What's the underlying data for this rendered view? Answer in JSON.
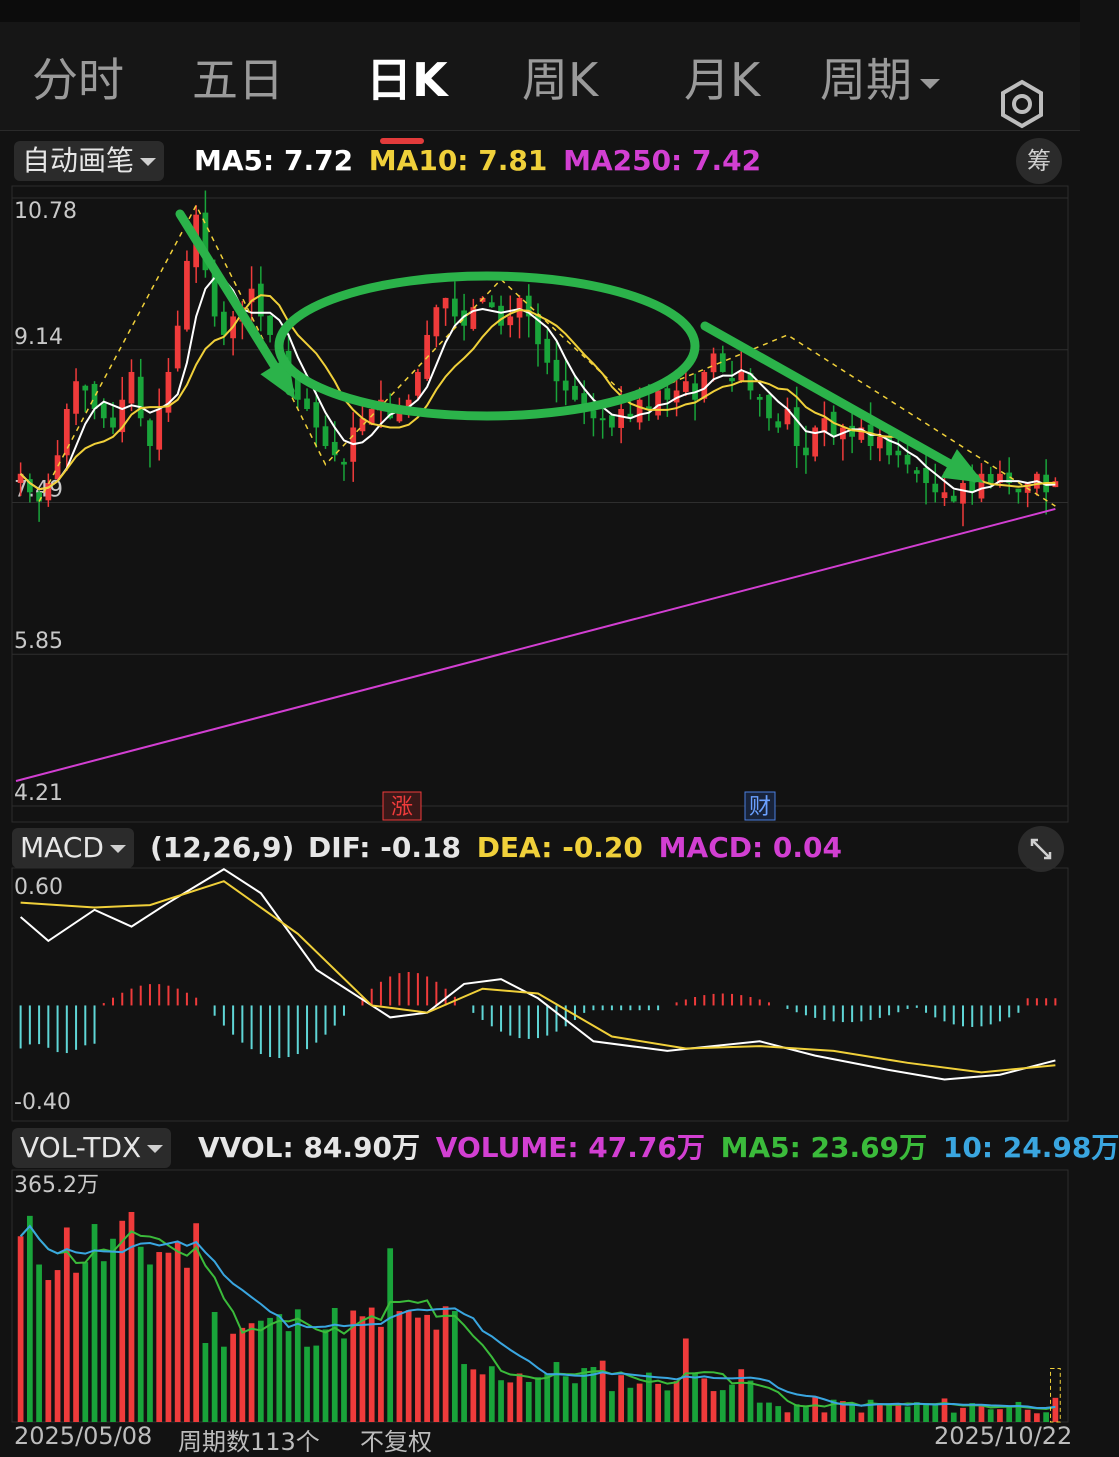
{
  "tabs": [
    {
      "label": "分时",
      "active": false
    },
    {
      "label": "五日",
      "active": false
    },
    {
      "label": "日K",
      "active": true
    },
    {
      "label": "周K",
      "active": false
    },
    {
      "label": "月K",
      "active": false
    },
    {
      "label": "周期",
      "active": false
    }
  ],
  "price_panel": {
    "mode_label": "自动画笔",
    "ma5": "MA5: 7.72",
    "ma10": "MA10: 7.81",
    "ma250": "MA250: 7.42",
    "chip_button": "筹",
    "marker_limit_up": "涨",
    "marker_finance": "财"
  },
  "macd_panel": {
    "indicator": "MACD",
    "params": "(12,26,9)",
    "dif": "DIF: -0.18",
    "dea": "DEA: -0.20",
    "macd": "MACD: 0.04"
  },
  "vol_panel": {
    "indicator": "VOL-TDX",
    "vvol": "VVOL: 84.90万",
    "volume": "VOLUME: 47.76万",
    "ma5": "MA5: 23.69万",
    "ma10": "10: 24.98万"
  },
  "footer": {
    "start_date": "2025/05/08",
    "period_count": "周期数113个",
    "adjust": "不复权",
    "end_date": "2025/10/22"
  },
  "colors": {
    "up": "#ef3b3b",
    "down": "#19a43a",
    "ma5": "#ffffff",
    "ma10": "#f0d03a",
    "ma250": "#d23fd2",
    "dea": "#f0d03a",
    "macd_neg": "#5fd6d6",
    "vol_ma5": "#3bbb3b",
    "vol_ma10": "#3aa6e0",
    "annotation": "#2bb34a"
  },
  "chart_data": [
    {
      "type": "candlestick",
      "title": "",
      "y_ticks": [
        "10.78",
        "9.14",
        "7.49",
        "5.85",
        "4.21"
      ],
      "ylim": [
        4.21,
        10.78
      ],
      "n_periods": 113,
      "x_range": [
        "2025/05/08",
        "2025/10/22"
      ],
      "close": [
        7.8,
        7.6,
        7.5,
        7.7,
        8.0,
        8.5,
        8.8,
        8.7,
        8.5,
        8.4,
        8.3,
        8.6,
        8.9,
        8.4,
        8.1,
        8.5,
        8.9,
        9.4,
        10.1,
        10.6,
        10.0,
        9.5,
        9.3,
        9.5,
        9.6,
        9.8,
        9.5,
        9.3,
        9.1,
        8.8,
        8.6,
        8.5,
        8.3,
        8.1,
        8.0,
        7.9,
        8.3,
        8.4,
        8.5,
        8.6,
        8.4,
        8.5,
        8.6,
        8.9,
        9.3,
        9.6,
        9.7,
        9.5,
        9.4,
        9.6,
        9.7,
        9.6,
        9.4,
        9.5,
        9.7,
        9.5,
        9.2,
        9.0,
        8.8,
        8.7,
        8.6,
        8.5,
        8.4,
        8.4,
        8.3,
        8.5,
        8.4,
        8.6,
        8.5,
        8.7,
        8.6,
        8.7,
        8.8,
        8.6,
        8.9,
        9.1,
        8.9,
        8.8,
        8.9,
        8.7,
        8.6,
        8.4,
        8.3,
        8.5,
        8.1,
        8.0,
        8.3,
        8.4,
        8.2,
        8.3,
        8.2,
        8.3,
        8.1,
        8.2,
        8.0,
        8.0,
        7.9,
        7.8,
        7.7,
        7.6,
        7.6,
        7.5,
        7.7,
        7.6,
        7.8,
        7.7,
        7.8,
        7.7,
        7.6,
        7.7,
        7.8,
        7.6,
        7.72
      ],
      "ma5_last": 7.72,
      "ma10_last": 7.81,
      "ma250_last": 7.42
    },
    {
      "type": "bar",
      "title": "MACD (12,26,9)",
      "y_ticks": [
        "0.60",
        "-0.40"
      ],
      "ylim": [
        -0.4,
        0.6
      ],
      "dif_last": -0.18,
      "dea_last": -0.2,
      "macd_last": 0.04
    },
    {
      "type": "bar",
      "title": "VOL-TDX",
      "y_ticks": [
        "365.2万"
      ],
      "ylim": [
        0,
        365.2
      ],
      "unit": "万",
      "vvol": 84.9,
      "volume_last": 47.76,
      "ma5_last": 23.69,
      "ma10_last": 24.98
    }
  ]
}
